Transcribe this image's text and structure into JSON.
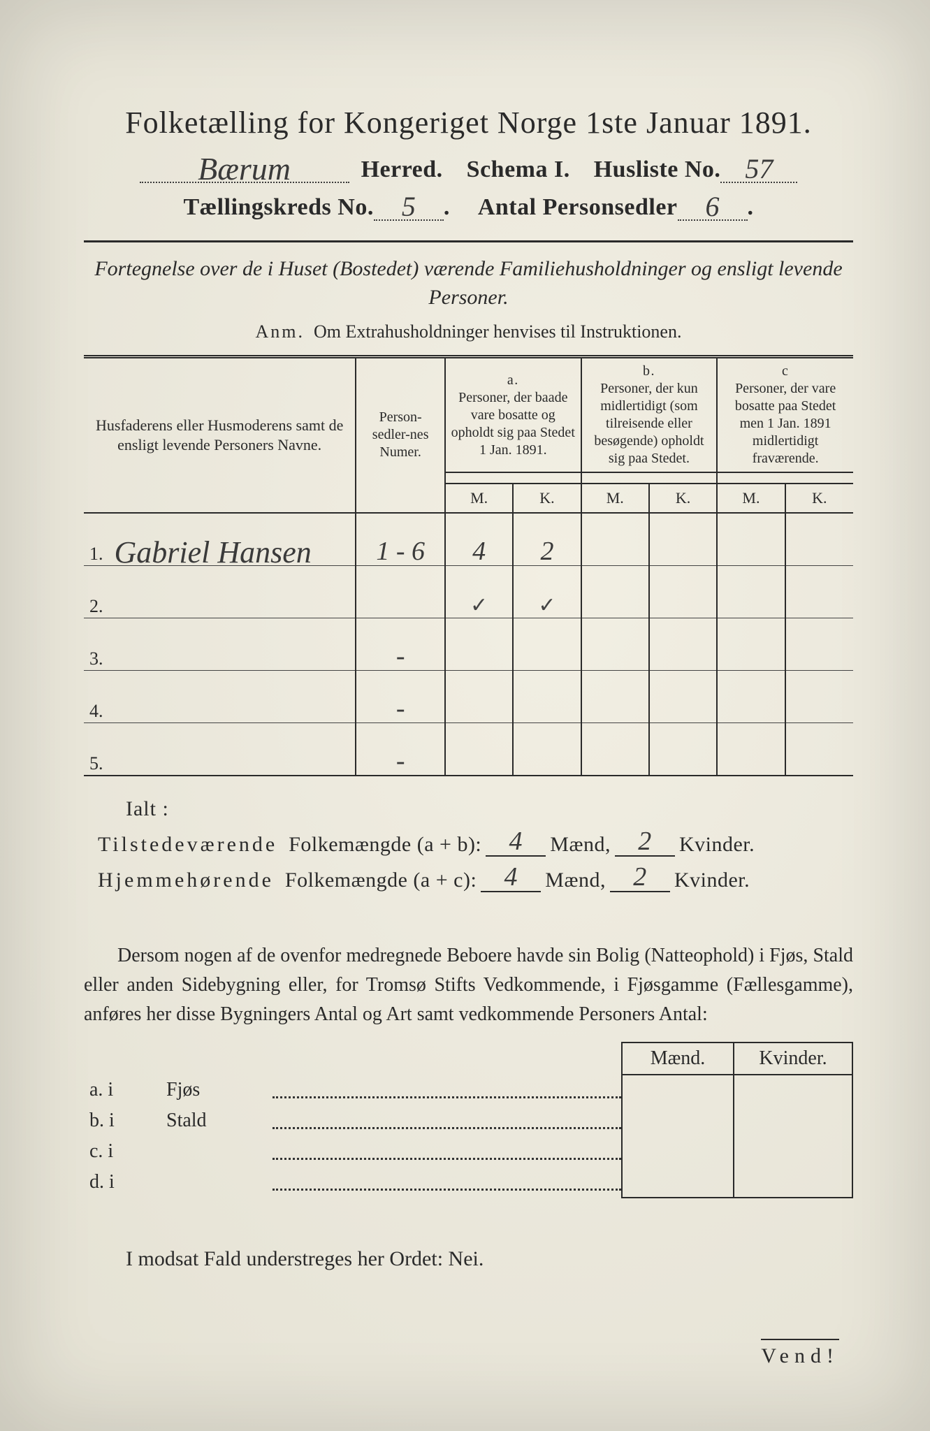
{
  "colors": {
    "paper": "#ece9dd",
    "ink": "#2a2a2a",
    "pencil": "#3a3a3a"
  },
  "title": "Folketælling for Kongeriget Norge 1ste Januar 1891.",
  "line2": {
    "herred_value": "Bærum",
    "herred_label": "Herred.",
    "schema_label": "Schema I.",
    "husliste_label": "Husliste No.",
    "husliste_value": "57"
  },
  "line3": {
    "kreds_label": "Tællingskreds No.",
    "kreds_value": "5",
    "kreds_suffix": ".",
    "antal_label": "Antal Personsedler",
    "antal_value": "6",
    "antal_suffix": "."
  },
  "subtitle": "Fortegnelse over de i Huset (Bostedet) værende Familiehusholdninger og ensligt levende Personer.",
  "anm_label": "Anm.",
  "anm_text": "Om Extrahusholdninger henvises til Instruktionen.",
  "headers": {
    "col1": "Husfaderens eller Husmoderens samt de ensligt levende Personers Navne.",
    "col2": "Person-sedler-nes Numer.",
    "a_label": "a.",
    "a_text": "Personer, der baade vare bosatte og opholdt sig paa Stedet 1 Jan. 1891.",
    "b_label": "b.",
    "b_text": "Personer, der kun midlertidigt (som tilreisende eller besøgende) opholdt sig paa Stedet.",
    "c_label": "c",
    "c_text": "Personer, der vare bosatte paa Stedet men 1 Jan. 1891 midlertidigt fraværende.",
    "M": "M.",
    "K": "K."
  },
  "rows": [
    {
      "num": "1.",
      "name": "Gabriel Hansen",
      "sedler": "1 - 6",
      "aM": "4",
      "aK": "2",
      "bM": "",
      "bK": "",
      "cM": "",
      "cK": ""
    },
    {
      "num": "2.",
      "name": "",
      "sedler": "",
      "aM": "✓",
      "aK": "✓",
      "bM": "",
      "bK": "",
      "cM": "",
      "cK": ""
    },
    {
      "num": "3.",
      "name": "",
      "sedler": "-",
      "aM": "",
      "aK": "",
      "bM": "",
      "bK": "",
      "cM": "",
      "cK": ""
    },
    {
      "num": "4.",
      "name": "",
      "sedler": "-",
      "aM": "",
      "aK": "",
      "bM": "",
      "bK": "",
      "cM": "",
      "cK": ""
    },
    {
      "num": "5.",
      "name": "",
      "sedler": "-",
      "aM": "",
      "aK": "",
      "bM": "",
      "bK": "",
      "cM": "",
      "cK": ""
    }
  ],
  "ialt": "Ialt :",
  "sum": {
    "present_label_a": "Tilstedeværende",
    "present_label_b": "Folkemængde (a + b):",
    "present_M": "4",
    "present_K": "2",
    "home_label_a": "Hjemmehørende",
    "home_label_b": "Folkemængde (a + c):",
    "home_M": "4",
    "home_K": "2",
    "maend": "Mænd,",
    "kvinder": "Kvinder."
  },
  "para": "Dersom nogen af de ovenfor medregnede Beboere havde sin Bolig (Natteophold) i Fjøs, Stald eller anden Sidebygning eller, for Tromsø Stifts Vedkommende, i Fjøsgamme (Fællesgamme), anføres her disse Bygningers Antal og Art samt vedkommende Personers Antal:",
  "fjos": {
    "maend": "Mænd.",
    "kvinder": "Kvinder.",
    "rows": [
      {
        "lab": "a.  i",
        "txt": "Fjøs"
      },
      {
        "lab": "b.  i",
        "txt": "Stald"
      },
      {
        "lab": "c.  i",
        "txt": ""
      },
      {
        "lab": "d.  i",
        "txt": ""
      }
    ]
  },
  "modsat": "I modsat Fald understreges her Ordet:  Nei.",
  "vend": "Vend!"
}
